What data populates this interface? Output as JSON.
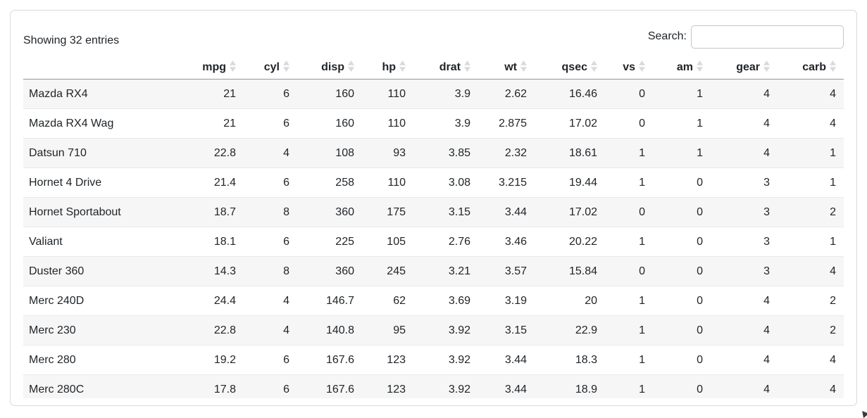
{
  "page": {
    "info_text": "Showing 32 entries"
  },
  "search": {
    "label": "Search:",
    "value": "",
    "placeholder": ""
  },
  "table": {
    "row_name_header": "",
    "columns": [
      "mpg",
      "cyl",
      "disp",
      "hp",
      "drat",
      "wt",
      "qsec",
      "vs",
      "am",
      "gear",
      "carb"
    ],
    "sort_state": "unsorted",
    "rows": [
      {
        "name": "Mazda RX4",
        "values": [
          21,
          6,
          160,
          110,
          3.9,
          2.62,
          16.46,
          0,
          1,
          4,
          4
        ]
      },
      {
        "name": "Mazda RX4 Wag",
        "values": [
          21,
          6,
          160,
          110,
          3.9,
          2.875,
          17.02,
          0,
          1,
          4,
          4
        ]
      },
      {
        "name": "Datsun 710",
        "values": [
          22.8,
          4,
          108,
          93,
          3.85,
          2.32,
          18.61,
          1,
          1,
          4,
          1
        ]
      },
      {
        "name": "Hornet 4 Drive",
        "values": [
          21.4,
          6,
          258,
          110,
          3.08,
          3.215,
          19.44,
          1,
          0,
          3,
          1
        ]
      },
      {
        "name": "Hornet Sportabout",
        "values": [
          18.7,
          8,
          360,
          175,
          3.15,
          3.44,
          17.02,
          0,
          0,
          3,
          2
        ]
      },
      {
        "name": "Valiant",
        "values": [
          18.1,
          6,
          225,
          105,
          2.76,
          3.46,
          20.22,
          1,
          0,
          3,
          1
        ]
      },
      {
        "name": "Duster 360",
        "values": [
          14.3,
          8,
          360,
          245,
          3.21,
          3.57,
          15.84,
          0,
          0,
          3,
          4
        ]
      },
      {
        "name": "Merc 240D",
        "values": [
          24.4,
          4,
          146.7,
          62,
          3.69,
          3.19,
          20,
          1,
          0,
          4,
          2
        ]
      },
      {
        "name": "Merc 230",
        "values": [
          22.8,
          4,
          140.8,
          95,
          3.92,
          3.15,
          22.9,
          1,
          0,
          4,
          2
        ]
      },
      {
        "name": "Merc 280",
        "values": [
          19.2,
          6,
          167.6,
          123,
          3.92,
          3.44,
          18.3,
          1,
          0,
          4,
          4
        ]
      },
      {
        "name": "Merc 280C",
        "values": [
          17.8,
          6,
          167.6,
          123,
          3.92,
          3.44,
          18.9,
          1,
          0,
          4,
          4
        ]
      }
    ]
  },
  "colors": {
    "text": "#212529",
    "stripe": "#f6f6f6",
    "card_border": "#d9d9d9",
    "header_border": "#979797",
    "row_border": "#eaeaea",
    "input_border": "#c6c6c6",
    "sort_icon": "#dadada"
  }
}
